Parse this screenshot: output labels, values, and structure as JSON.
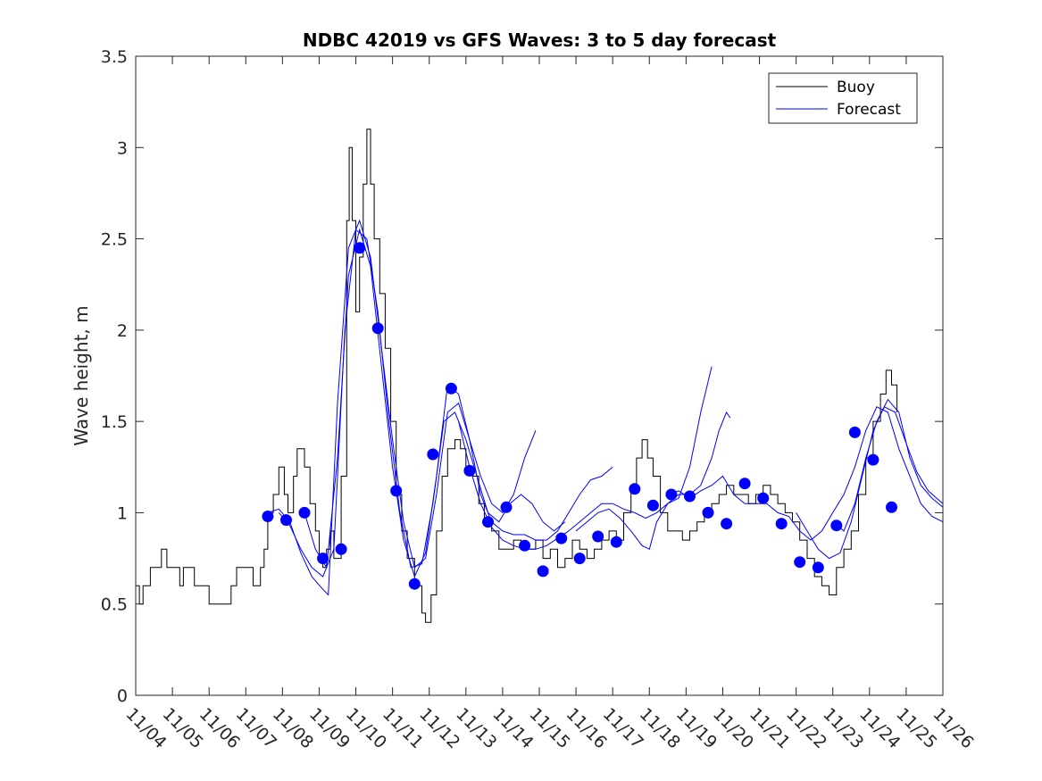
{
  "chart_data": {
    "type": "line",
    "title": "NDBC 42019 vs GFS Waves: 3 to 5 day forecast",
    "xlabel": "",
    "ylabel": "Wave height, m",
    "xlim": [
      0,
      22
    ],
    "ylim": [
      0,
      3.5
    ],
    "x_tick_labels": [
      "11/04",
      "11/05",
      "11/06",
      "11/07",
      "11/08",
      "11/09",
      "11/10",
      "11/11",
      "11/12",
      "11/13",
      "11/14",
      "11/15",
      "11/16",
      "11/17",
      "11/18",
      "11/19",
      "11/20",
      "11/21",
      "11/22",
      "11/23",
      "11/24",
      "11/25",
      "11/26"
    ],
    "y_tick_labels": [
      "0",
      "0.5",
      "1",
      "1.5",
      "2",
      "2.5",
      "3",
      "3.5"
    ],
    "y_ticks": [
      0,
      0.5,
      1,
      1.5,
      2,
      2.5,
      3,
      3.5
    ],
    "legend": {
      "placement": "top-right",
      "entries": [
        {
          "label": "Buoy",
          "color": "#000000"
        },
        {
          "label": "Forecast",
          "color": "#0000ff"
        }
      ]
    },
    "buoy_color": "#000000",
    "forecast_color": "#0000ff",
    "buoy": [
      [
        0.0,
        0.6
      ],
      [
        0.1,
        0.5
      ],
      [
        0.2,
        0.6
      ],
      [
        0.4,
        0.7
      ],
      [
        0.7,
        0.8
      ],
      [
        0.85,
        0.7
      ],
      [
        1.2,
        0.6
      ],
      [
        1.3,
        0.7
      ],
      [
        1.6,
        0.6
      ],
      [
        2.0,
        0.5
      ],
      [
        2.6,
        0.6
      ],
      [
        2.75,
        0.7
      ],
      [
        3.2,
        0.6
      ],
      [
        3.4,
        0.7
      ],
      [
        3.5,
        0.8
      ],
      [
        3.6,
        1.0
      ],
      [
        3.75,
        1.1
      ],
      [
        3.9,
        1.25
      ],
      [
        4.05,
        1.1
      ],
      [
        4.15,
        1.0
      ],
      [
        4.3,
        1.2
      ],
      [
        4.4,
        1.35
      ],
      [
        4.6,
        1.25
      ],
      [
        4.75,
        1.05
      ],
      [
        4.9,
        0.9
      ],
      [
        5.0,
        0.75
      ],
      [
        5.1,
        0.7
      ],
      [
        5.2,
        0.8
      ],
      [
        5.3,
        0.9
      ],
      [
        5.4,
        0.75
      ],
      [
        5.6,
        1.2
      ],
      [
        5.75,
        2.6
      ],
      [
        5.82,
        3.0
      ],
      [
        5.9,
        2.6
      ],
      [
        6.0,
        2.1
      ],
      [
        6.1,
        2.4
      ],
      [
        6.2,
        2.8
      ],
      [
        6.3,
        3.1
      ],
      [
        6.4,
        2.8
      ],
      [
        6.5,
        2.5
      ],
      [
        6.65,
        2.2
      ],
      [
        6.8,
        1.9
      ],
      [
        6.95,
        1.5
      ],
      [
        7.1,
        1.1
      ],
      [
        7.25,
        0.9
      ],
      [
        7.4,
        0.75
      ],
      [
        7.6,
        0.6
      ],
      [
        7.8,
        0.45
      ],
      [
        7.9,
        0.4
      ],
      [
        8.05,
        0.55
      ],
      [
        8.2,
        0.9
      ],
      [
        8.35,
        1.2
      ],
      [
        8.5,
        1.35
      ],
      [
        8.7,
        1.4
      ],
      [
        8.85,
        1.35
      ],
      [
        9.0,
        1.25
      ],
      [
        9.2,
        1.2
      ],
      [
        9.35,
        1.05
      ],
      [
        9.5,
        0.95
      ],
      [
        9.7,
        0.9
      ],
      [
        9.9,
        0.8
      ],
      [
        10.1,
        0.8
      ],
      [
        10.3,
        0.85
      ],
      [
        10.5,
        0.8
      ],
      [
        10.7,
        0.8
      ],
      [
        10.9,
        0.85
      ],
      [
        11.1,
        0.75
      ],
      [
        11.3,
        0.8
      ],
      [
        11.5,
        0.7
      ],
      [
        11.7,
        0.75
      ],
      [
        11.9,
        0.85
      ],
      [
        12.1,
        0.8
      ],
      [
        12.3,
        0.75
      ],
      [
        12.5,
        0.8
      ],
      [
        12.7,
        0.85
      ],
      [
        12.9,
        0.9
      ],
      [
        13.1,
        0.85
      ],
      [
        13.3,
        1.0
      ],
      [
        13.5,
        1.15
      ],
      [
        13.65,
        1.3
      ],
      [
        13.8,
        1.4
      ],
      [
        13.95,
        1.3
      ],
      [
        14.1,
        1.2
      ],
      [
        14.3,
        1.0
      ],
      [
        14.5,
        0.9
      ],
      [
        14.7,
        0.9
      ],
      [
        14.9,
        0.85
      ],
      [
        15.1,
        0.9
      ],
      [
        15.3,
        0.95
      ],
      [
        15.5,
        1.0
      ],
      [
        15.7,
        1.05
      ],
      [
        15.9,
        1.1
      ],
      [
        16.1,
        1.15
      ],
      [
        16.3,
        1.1
      ],
      [
        16.5,
        1.1
      ],
      [
        16.7,
        1.05
      ],
      [
        16.9,
        1.1
      ],
      [
        17.1,
        1.15
      ],
      [
        17.3,
        1.1
      ],
      [
        17.5,
        1.05
      ],
      [
        17.7,
        1.0
      ],
      [
        17.9,
        0.95
      ],
      [
        18.1,
        0.85
      ],
      [
        18.3,
        0.75
      ],
      [
        18.5,
        0.65
      ],
      [
        18.7,
        0.6
      ],
      [
        18.9,
        0.55
      ],
      [
        19.1,
        0.7
      ],
      [
        19.3,
        0.8
      ],
      [
        19.5,
        0.9
      ],
      [
        19.7,
        1.1
      ],
      [
        19.9,
        1.3
      ],
      [
        20.1,
        1.5
      ],
      [
        20.3,
        1.65
      ],
      [
        20.45,
        1.78
      ],
      [
        20.6,
        1.7
      ],
      [
        20.75,
        1.55
      ]
    ],
    "forecast_runs": [
      [
        [
          3.6,
          1.0
        ],
        [
          3.9,
          1.02
        ],
        [
          4.2,
          0.95
        ],
        [
          4.5,
          0.78
        ],
        [
          4.8,
          0.65
        ],
        [
          5.1,
          0.58
        ],
        [
          5.25,
          0.55
        ],
        [
          5.5,
          1.6
        ],
        [
          5.8,
          2.45
        ],
        [
          6.1,
          2.6
        ],
        [
          6.4,
          2.4
        ],
        [
          6.7,
          1.9
        ],
        [
          7.0,
          1.4
        ],
        [
          7.3,
          0.95
        ],
        [
          7.6,
          0.7
        ],
        [
          7.9,
          0.75
        ],
        [
          8.2,
          1.1
        ],
        [
          8.5,
          1.55
        ],
        [
          8.8,
          1.6
        ],
        [
          9.1,
          1.4
        ],
        [
          9.4,
          1.2
        ],
        [
          9.7,
          1.05
        ],
        [
          10.0,
          1.0
        ],
        [
          10.3,
          1.1
        ],
        [
          10.6,
          1.3
        ],
        [
          10.9,
          1.45
        ]
      ],
      [
        [
          3.9,
          1.0
        ],
        [
          4.2,
          0.93
        ],
        [
          4.5,
          0.8
        ],
        [
          4.8,
          0.7
        ],
        [
          5.1,
          0.65
        ],
        [
          5.4,
          0.8
        ],
        [
          5.7,
          2.0
        ],
        [
          6.0,
          2.55
        ],
        [
          6.3,
          2.5
        ],
        [
          6.6,
          2.1
        ],
        [
          6.9,
          1.5
        ],
        [
          7.2,
          1.0
        ],
        [
          7.5,
          0.7
        ],
        [
          7.8,
          0.72
        ],
        [
          8.1,
          1.05
        ],
        [
          8.4,
          1.5
        ],
        [
          8.7,
          1.55
        ],
        [
          9.0,
          1.4
        ],
        [
          9.3,
          1.2
        ],
        [
          9.6,
          1.0
        ],
        [
          9.9,
          0.95
        ],
        [
          10.2,
          1.05
        ],
        [
          10.5,
          1.1
        ],
        [
          10.8,
          1.05
        ],
        [
          11.1,
          0.95
        ],
        [
          11.4,
          0.9
        ],
        [
          11.7,
          0.95
        ]
      ],
      [
        [
          4.6,
          1.0
        ],
        [
          4.9,
          0.8
        ],
        [
          5.2,
          0.7
        ],
        [
          5.5,
          1.3
        ],
        [
          5.8,
          2.3
        ],
        [
          6.1,
          2.55
        ],
        [
          6.4,
          2.35
        ],
        [
          6.7,
          1.8
        ],
        [
          7.0,
          1.25
        ],
        [
          7.3,
          0.85
        ],
        [
          7.6,
          0.65
        ],
        [
          7.9,
          0.78
        ],
        [
          8.2,
          1.2
        ],
        [
          8.5,
          1.7
        ],
        [
          8.8,
          1.65
        ],
        [
          9.1,
          1.4
        ],
        [
          9.4,
          1.1
        ],
        [
          9.7,
          0.95
        ],
        [
          10.0,
          0.9
        ],
        [
          10.3,
          0.88
        ],
        [
          10.6,
          0.88
        ],
        [
          10.9,
          0.85
        ],
        [
          11.2,
          0.85
        ],
        [
          11.5,
          0.9
        ],
        [
          11.8,
          1.0
        ],
        [
          12.1,
          1.1
        ],
        [
          12.4,
          1.18
        ],
        [
          12.7,
          1.2
        ],
        [
          13.0,
          1.25
        ]
      ],
      [
        [
          8.8,
          1.5
        ],
        [
          9.1,
          1.25
        ],
        [
          9.4,
          1.05
        ],
        [
          9.7,
          0.92
        ],
        [
          10.0,
          0.85
        ],
        [
          10.3,
          0.82
        ],
        [
          10.6,
          0.8
        ],
        [
          10.9,
          0.8
        ],
        [
          11.2,
          0.82
        ],
        [
          11.5,
          0.86
        ],
        [
          11.8,
          0.9
        ],
        [
          12.1,
          0.95
        ],
        [
          12.4,
          1.0
        ],
        [
          12.7,
          1.05
        ],
        [
          13.0,
          1.05
        ],
        [
          13.3,
          1.02
        ],
        [
          13.6,
          1.0
        ],
        [
          13.9,
          0.97
        ],
        [
          14.2,
          1.0
        ],
        [
          14.5,
          1.05
        ],
        [
          14.8,
          1.08
        ],
        [
          15.1,
          1.25
        ],
        [
          15.4,
          1.55
        ],
        [
          15.7,
          1.8
        ]
      ],
      [
        [
          12.0,
          0.9
        ],
        [
          12.3,
          0.95
        ],
        [
          12.6,
          1.0
        ],
        [
          12.9,
          1.02
        ],
        [
          13.2,
          0.97
        ],
        [
          13.5,
          0.9
        ],
        [
          13.8,
          0.82
        ],
        [
          14.0,
          0.8
        ],
        [
          14.2,
          0.95
        ],
        [
          14.5,
          1.05
        ],
        [
          14.8,
          1.1
        ],
        [
          15.1,
          1.1
        ],
        [
          15.4,
          1.15
        ],
        [
          15.7,
          1.3
        ],
        [
          15.9,
          1.45
        ],
        [
          16.1,
          1.55
        ],
        [
          16.2,
          1.52
        ]
      ],
      [
        [
          14.5,
          1.1
        ],
        [
          14.8,
          1.12
        ],
        [
          15.1,
          1.08
        ],
        [
          15.4,
          1.12
        ],
        [
          15.7,
          1.15
        ],
        [
          16.0,
          1.2
        ],
        [
          16.3,
          1.1
        ],
        [
          16.6,
          1.05
        ],
        [
          16.9,
          1.05
        ],
        [
          17.2,
          1.05
        ],
        [
          17.5,
          1.0
        ],
        [
          17.8,
          0.98
        ],
        [
          18.1,
          0.9
        ],
        [
          18.4,
          0.85
        ],
        [
          18.7,
          0.9
        ],
        [
          19.0,
          1.0
        ],
        [
          19.3,
          1.1
        ],
        [
          19.6,
          1.25
        ],
        [
          19.9,
          1.45
        ],
        [
          20.2,
          1.58
        ],
        [
          20.5,
          1.55
        ],
        [
          20.8,
          1.35
        ],
        [
          21.1,
          1.2
        ],
        [
          21.4,
          1.05
        ],
        [
          21.7,
          0.98
        ],
        [
          22.0,
          0.95
        ]
      ],
      [
        [
          18.0,
          1.0
        ],
        [
          18.3,
          0.9
        ],
        [
          18.6,
          0.8
        ],
        [
          18.9,
          0.75
        ],
        [
          19.2,
          0.78
        ],
        [
          19.5,
          0.95
        ],
        [
          19.8,
          1.2
        ],
        [
          20.1,
          1.45
        ],
        [
          20.4,
          1.58
        ],
        [
          20.7,
          1.55
        ],
        [
          21.0,
          1.38
        ],
        [
          21.3,
          1.22
        ],
        [
          21.6,
          1.12
        ],
        [
          22.0,
          1.05
        ]
      ],
      [
        [
          19.0,
          0.95
        ],
        [
          19.3,
          0.9
        ],
        [
          19.6,
          1.05
        ],
        [
          19.9,
          1.3
        ],
        [
          20.2,
          1.5
        ],
        [
          20.5,
          1.62
        ],
        [
          20.8,
          1.55
        ],
        [
          21.1,
          1.3
        ],
        [
          21.4,
          1.15
        ],
        [
          21.7,
          1.08
        ],
        [
          22.0,
          1.03
        ]
      ]
    ],
    "markers": [
      {
        "x": 3.6,
        "y": 0.98
      },
      {
        "x": 4.1,
        "y": 0.96
      },
      {
        "x": 4.6,
        "y": 1.0
      },
      {
        "x": 5.1,
        "y": 0.75
      },
      {
        "x": 5.6,
        "y": 0.8
      },
      {
        "x": 6.1,
        "y": 2.45
      },
      {
        "x": 6.6,
        "y": 2.01
      },
      {
        "x": 7.1,
        "y": 1.12
      },
      {
        "x": 7.6,
        "y": 0.61
      },
      {
        "x": 8.1,
        "y": 1.32
      },
      {
        "x": 8.6,
        "y": 1.68
      },
      {
        "x": 9.1,
        "y": 1.23
      },
      {
        "x": 9.6,
        "y": 0.95
      },
      {
        "x": 10.1,
        "y": 1.03
      },
      {
        "x": 10.6,
        "y": 0.82
      },
      {
        "x": 11.1,
        "y": 0.68
      },
      {
        "x": 11.6,
        "y": 0.86
      },
      {
        "x": 12.1,
        "y": 0.75
      },
      {
        "x": 12.6,
        "y": 0.87
      },
      {
        "x": 13.1,
        "y": 0.84
      },
      {
        "x": 13.6,
        "y": 1.13
      },
      {
        "x": 14.1,
        "y": 1.04
      },
      {
        "x": 14.6,
        "y": 1.1
      },
      {
        "x": 15.1,
        "y": 1.09
      },
      {
        "x": 15.6,
        "y": 1.0
      },
      {
        "x": 16.1,
        "y": 0.94
      },
      {
        "x": 16.6,
        "y": 1.16
      },
      {
        "x": 17.1,
        "y": 1.08
      },
      {
        "x": 17.6,
        "y": 0.94
      },
      {
        "x": 18.1,
        "y": 0.73
      },
      {
        "x": 18.6,
        "y": 0.7
      },
      {
        "x": 19.1,
        "y": 0.93
      },
      {
        "x": 19.6,
        "y": 1.44
      },
      {
        "x": 20.1,
        "y": 1.29
      },
      {
        "x": 20.6,
        "y": 1.03
      }
    ]
  }
}
